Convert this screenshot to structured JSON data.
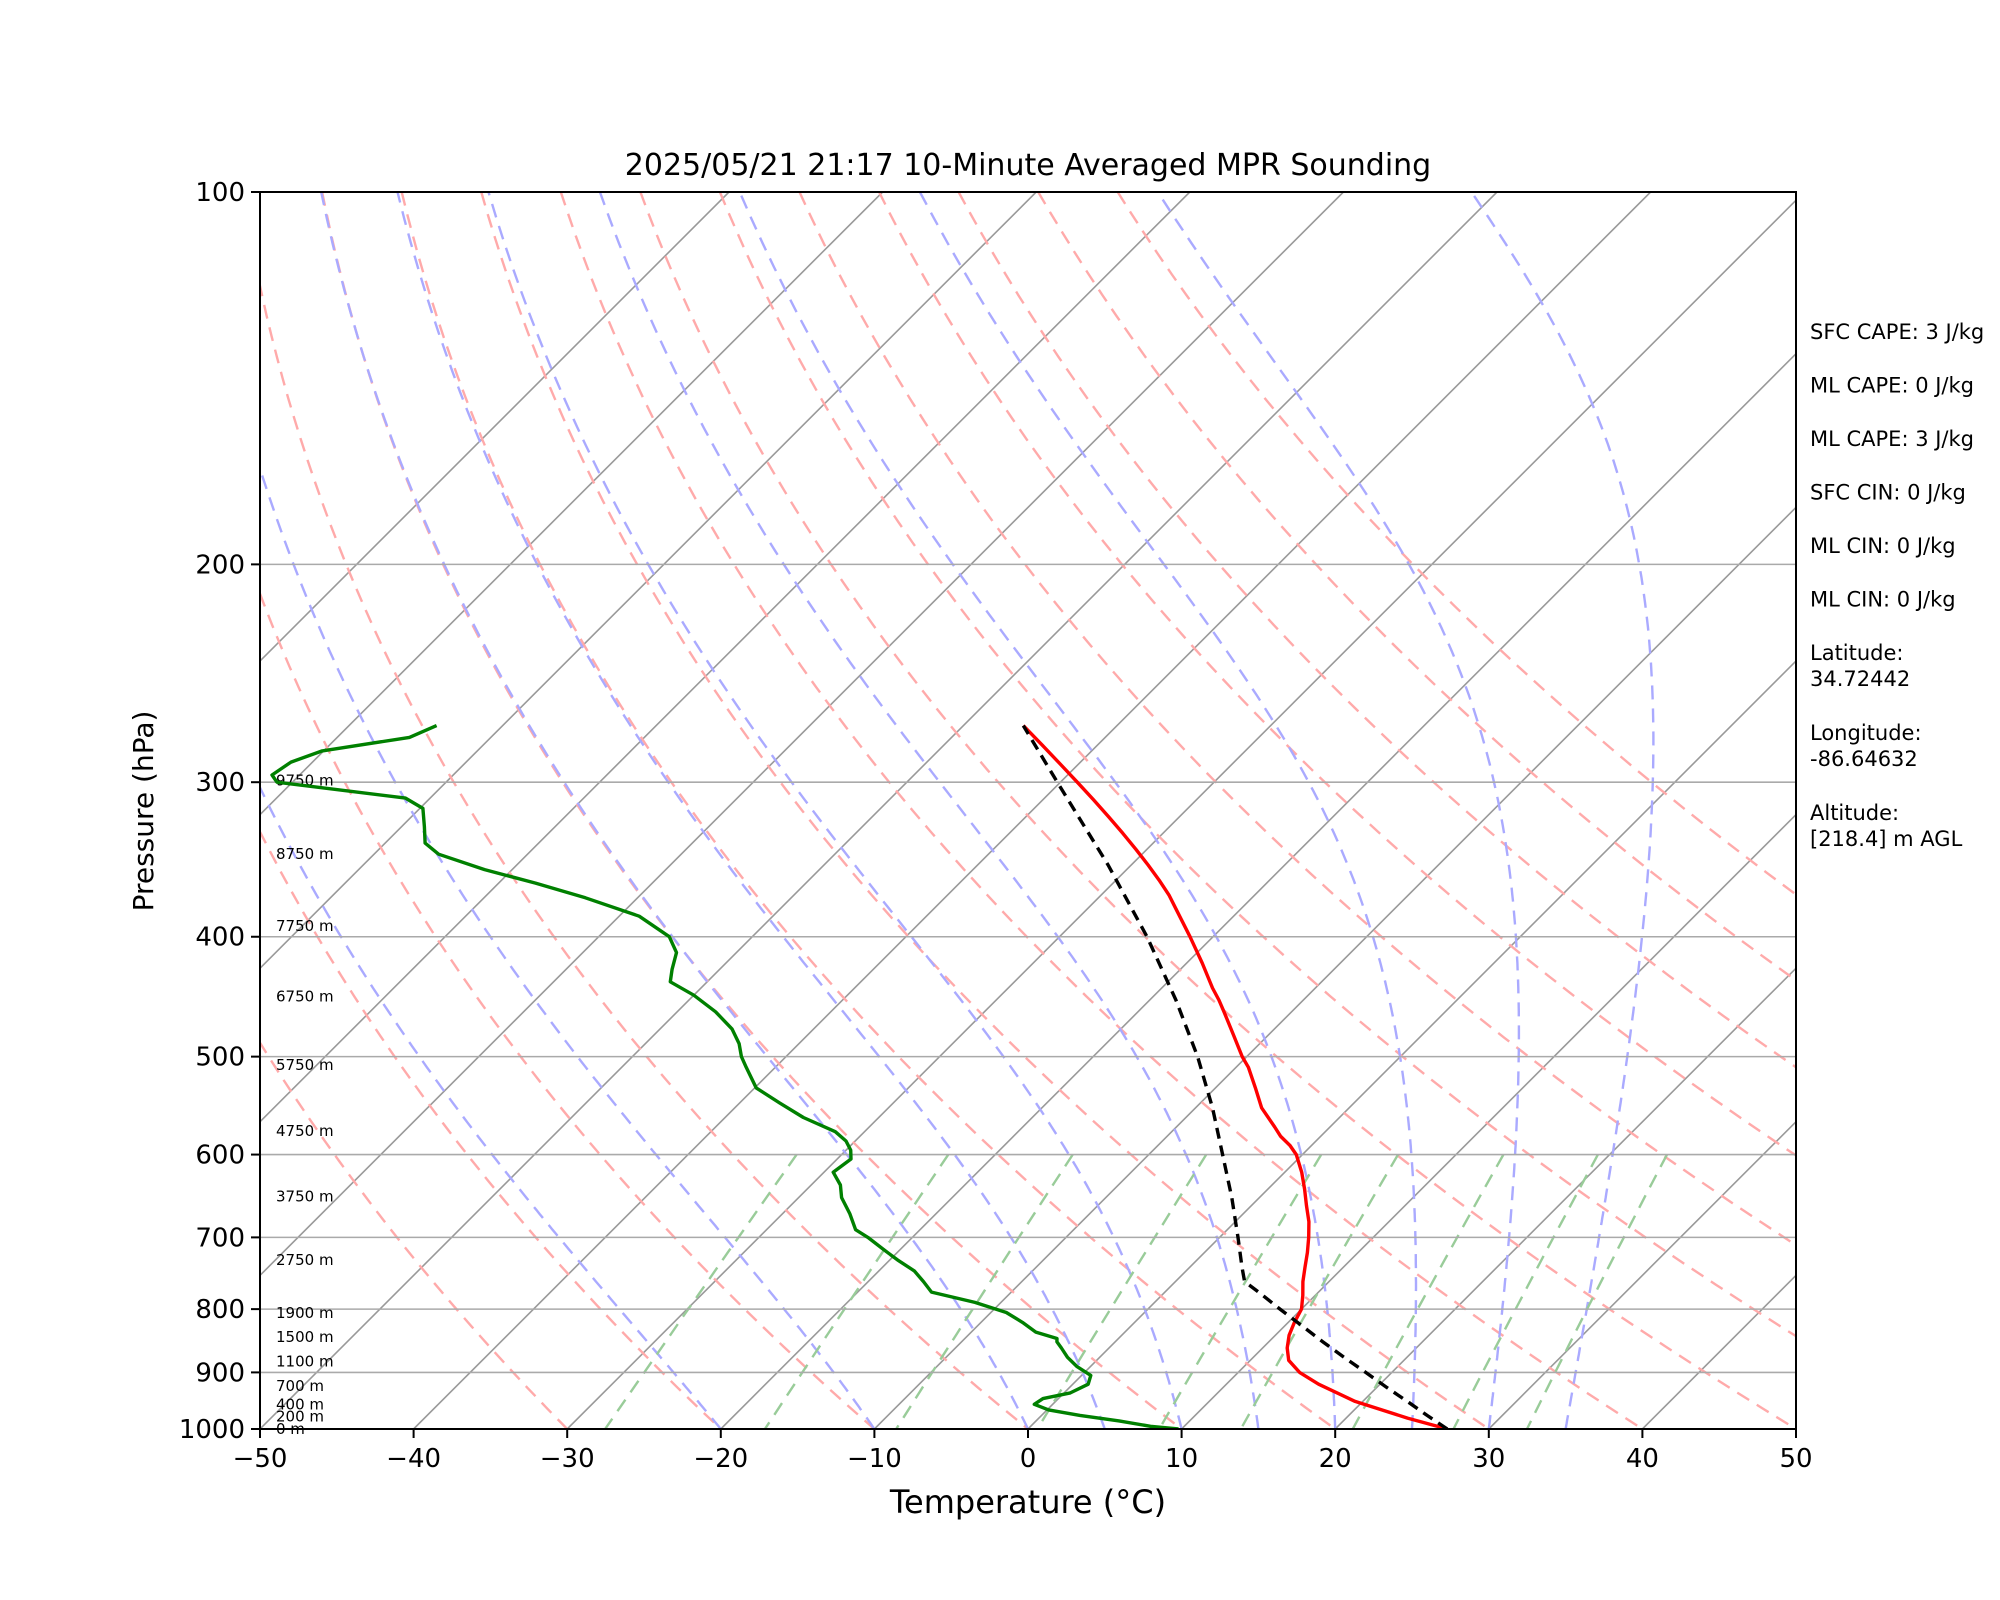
{
  "chart_data": {
    "type": "line",
    "subtype": "skew-T log-P sounding",
    "title": "2025/05/21 21:17 10-Minute Averaged MPR Sounding",
    "xlabel": "Temperature (°C)",
    "ylabel": "Pressure (hPa)",
    "xlim": [
      -50,
      50
    ],
    "ylim": [
      1000,
      100
    ],
    "y_scale": "log",
    "x_ticks": [
      -50,
      -40,
      -30,
      -20,
      -10,
      0,
      10,
      20,
      30,
      40,
      50
    ],
    "x_tick_labels": [
      "−50",
      "−40",
      "−30",
      "−20",
      "−10",
      "0",
      "10",
      "20",
      "30",
      "40",
      "50"
    ],
    "y_ticks": [
      100,
      200,
      300,
      400,
      500,
      600,
      700,
      800,
      900,
      1000
    ],
    "y_tick_labels": [
      "100",
      "200",
      "300",
      "400",
      "500",
      "600",
      "700",
      "800",
      "900",
      "1000"
    ],
    "grid": true,
    "series": [
      {
        "role": "temperature",
        "color": "#ff0000",
        "points": [
          [
            1000,
            27.3
          ],
          [
            980,
            24.0
          ],
          [
            950,
            19.5
          ],
          [
            920,
            16.0
          ],
          [
            900,
            14.0
          ],
          [
            880,
            12.5
          ],
          [
            860,
            11.6
          ],
          [
            840,
            10.9
          ],
          [
            820,
            10.4
          ],
          [
            800,
            10.0
          ],
          [
            780,
            9.2
          ],
          [
            760,
            8.3
          ],
          [
            740,
            7.5
          ],
          [
            720,
            6.7
          ],
          [
            700,
            5.8
          ],
          [
            680,
            4.8
          ],
          [
            660,
            3.6
          ],
          [
            640,
            2.4
          ],
          [
            620,
            1.1
          ],
          [
            600,
            -0.4
          ],
          [
            590,
            -1.4
          ],
          [
            580,
            -2.6
          ],
          [
            570,
            -3.6
          ],
          [
            550,
            -5.7
          ],
          [
            530,
            -7.4
          ],
          [
            510,
            -9.2
          ],
          [
            500,
            -10.3
          ],
          [
            480,
            -12.3
          ],
          [
            460,
            -14.4
          ],
          [
            450,
            -15.5
          ],
          [
            440,
            -16.7
          ],
          [
            420,
            -19.0
          ],
          [
            400,
            -21.5
          ],
          [
            380,
            -24.2
          ],
          [
            370,
            -25.6
          ],
          [
            360,
            -27.2
          ],
          [
            350,
            -28.9
          ],
          [
            340,
            -30.7
          ],
          [
            330,
            -32.6
          ],
          [
            320,
            -34.6
          ],
          [
            310,
            -36.7
          ],
          [
            300,
            -38.9
          ],
          [
            290,
            -41.2
          ],
          [
            280,
            -43.6
          ],
          [
            270,
            -46.1
          ]
        ]
      },
      {
        "role": "dewpoint",
        "color": "#008000",
        "points": [
          [
            1000,
            9.8
          ],
          [
            995,
            7.8
          ],
          [
            985,
            5.4
          ],
          [
            975,
            2.5
          ],
          [
            965,
            0.1
          ],
          [
            955,
            -1.2
          ],
          [
            945,
            -1.0
          ],
          [
            935,
            0.4
          ],
          [
            920,
            1.0
          ],
          [
            905,
            0.6
          ],
          [
            890,
            -0.9
          ],
          [
            875,
            -2.1
          ],
          [
            860,
            -3.1
          ],
          [
            850,
            -3.8
          ],
          [
            845,
            -4.0
          ],
          [
            835,
            -5.8
          ],
          [
            820,
            -7.3
          ],
          [
            805,
            -9.0
          ],
          [
            790,
            -11.7
          ],
          [
            775,
            -15.2
          ],
          [
            760,
            -16.4
          ],
          [
            745,
            -17.7
          ],
          [
            730,
            -19.5
          ],
          [
            715,
            -21.2
          ],
          [
            700,
            -22.9
          ],
          [
            690,
            -24.2
          ],
          [
            670,
            -25.6
          ],
          [
            650,
            -27.2
          ],
          [
            635,
            -28.1
          ],
          [
            620,
            -29.4
          ],
          [
            605,
            -29.1
          ],
          [
            595,
            -29.7
          ],
          [
            585,
            -30.6
          ],
          [
            575,
            -31.9
          ],
          [
            560,
            -34.9
          ],
          [
            545,
            -37.4
          ],
          [
            530,
            -39.9
          ],
          [
            510,
            -41.9
          ],
          [
            500,
            -42.9
          ],
          [
            488,
            -43.9
          ],
          [
            475,
            -45.3
          ],
          [
            460,
            -47.5
          ],
          [
            446,
            -50.0
          ],
          [
            435,
            -52.4
          ],
          [
            425,
            -53.1
          ],
          [
            412,
            -53.9
          ],
          [
            400,
            -55.4
          ],
          [
            385,
            -58.7
          ],
          [
            372,
            -63.4
          ],
          [
            362,
            -67.6
          ],
          [
            353,
            -71.8
          ],
          [
            343,
            -75.8
          ],
          [
            336,
            -77.4
          ],
          [
            326,
            -78.5
          ],
          [
            315,
            -79.8
          ],
          [
            309,
            -81.6
          ],
          [
            300,
            -91.0
          ],
          [
            296,
            -91.8
          ],
          [
            289,
            -91.4
          ],
          [
            283,
            -90.1
          ],
          [
            276,
            -85.3
          ],
          [
            270,
            -84.3
          ]
        ]
      },
      {
        "role": "parcel profile",
        "color": "#000000",
        "style": "dashed",
        "points": [
          [
            1000,
            27.3
          ],
          [
            975,
            25.1
          ],
          [
            950,
            22.9
          ],
          [
            925,
            20.6
          ],
          [
            900,
            18.3
          ],
          [
            875,
            15.9
          ],
          [
            850,
            13.5
          ],
          [
            825,
            11.1
          ],
          [
            800,
            8.6
          ],
          [
            775,
            6.1
          ],
          [
            760,
            4.5
          ],
          [
            740,
            3.4
          ],
          [
            700,
            1.2
          ],
          [
            650,
            -1.8
          ],
          [
            600,
            -5.2
          ],
          [
            550,
            -8.9
          ],
          [
            500,
            -13.2
          ],
          [
            450,
            -18.3
          ],
          [
            400,
            -24.3
          ],
          [
            350,
            -31.5
          ],
          [
            300,
            -40.2
          ],
          [
            270,
            -46.1
          ]
        ]
      }
    ],
    "reference_lines": {
      "isotherms_C": [
        -100,
        -90,
        -80,
        -70,
        -60,
        -50,
        -40,
        -30,
        -20,
        -10,
        0,
        10,
        20,
        30,
        40,
        50
      ],
      "dry_adiabats_C": [
        -30,
        -20,
        -10,
        0,
        10,
        20,
        30,
        40,
        50,
        60,
        70,
        80,
        90,
        100,
        110
      ],
      "moist_adiabats_C": [
        -20,
        -10,
        0,
        5,
        10,
        15,
        20,
        25,
        30,
        35
      ],
      "mixing_ratio_lines_g_per_kg": [
        0.4,
        1,
        2,
        4,
        7,
        10,
        16,
        24,
        32
      ],
      "colors": {
        "isotherm": "#999999",
        "dry_adiabat": "#ffaaaa",
        "moist_adiabat": "#aaaaff",
        "mixing_ratio": "#99cc99"
      }
    },
    "height_labels": [
      {
        "label": "0 m",
        "p": 1000
      },
      {
        "label": "200 m",
        "p": 977
      },
      {
        "label": "400 m",
        "p": 955
      },
      {
        "label": "700 m",
        "p": 923
      },
      {
        "label": "1100 m",
        "p": 882
      },
      {
        "label": "1500 m",
        "p": 843
      },
      {
        "label": "1900 m",
        "p": 806
      },
      {
        "label": "2750 m",
        "p": 730
      },
      {
        "label": "3750 m",
        "p": 649
      },
      {
        "label": "4750 m",
        "p": 574
      },
      {
        "label": "5750 m",
        "p": 508
      },
      {
        "label": "6750 m",
        "p": 447
      },
      {
        "label": "7750 m",
        "p": 392
      },
      {
        "label": "8750 m",
        "p": 343
      },
      {
        "label": "9750 m",
        "p": 299
      }
    ],
    "annotations": [
      "SFC CAPE: 3 J/kg",
      "ML CAPE: 0 J/kg",
      "ML CAPE: 3 J/kg",
      "SFC CIN: 0 J/kg",
      "ML CIN: 0 J/kg",
      "ML CIN: 0 J/kg",
      "Latitude:\n34.72442",
      "Longitude:\n-86.64632",
      "Altitude:\n[218.4] m AGL"
    ]
  }
}
